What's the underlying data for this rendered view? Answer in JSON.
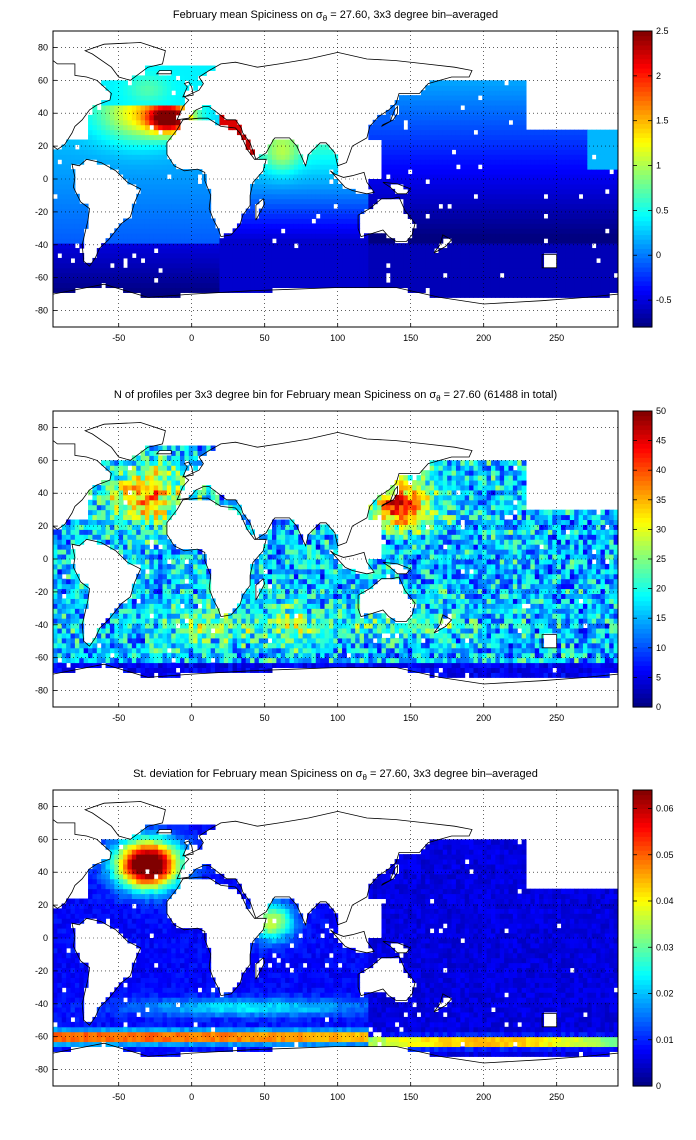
{
  "chart_data": [
    {
      "type": "heatmap",
      "title_prefix": "February mean Spiciness on σ",
      "title_sub": "θ",
      "title_suffix": " = 27.60, 3x3 degree bin–averaged",
      "xlim": [
        -95,
        292
      ],
      "ylim": [
        -90,
        90
      ],
      "xticks": [
        -50,
        0,
        50,
        100,
        150,
        200,
        250
      ],
      "yticks": [
        80,
        60,
        40,
        20,
        0,
        -20,
        -40,
        -60,
        -80
      ],
      "grid": true,
      "colorbar": {
        "min": -0.8,
        "max": 2.5,
        "ticks": [
          2.5,
          2,
          1.5,
          1,
          0.5,
          0,
          -0.5
        ],
        "tick_labels": [
          "2.5",
          "2",
          "1.5",
          "1",
          "0.5",
          "0",
          "-0.5"
        ]
      },
      "colormap": "jet",
      "field": "spiciness"
    },
    {
      "type": "heatmap",
      "title_prefix": "N of profiles per 3x3 degree bin for February mean Spiciness on σ",
      "title_sub": "θ",
      "title_suffix": " = 27.60 (61488 in total)",
      "xlim": [
        -95,
        292
      ],
      "ylim": [
        -90,
        90
      ],
      "xticks": [
        -50,
        0,
        50,
        100,
        150,
        200,
        250
      ],
      "yticks": [
        80,
        60,
        40,
        20,
        0,
        -20,
        -40,
        -60,
        -80
      ],
      "grid": true,
      "colorbar": {
        "min": 0,
        "max": 50,
        "ticks": [
          50,
          45,
          40,
          35,
          30,
          25,
          20,
          15,
          10,
          5,
          0
        ],
        "tick_labels": [
          "50",
          "45",
          "40",
          "35",
          "30",
          "25",
          "20",
          "15",
          "10",
          "5",
          "0"
        ]
      },
      "colormap": "jet",
      "field": "count"
    },
    {
      "type": "heatmap",
      "title_prefix": "St. deviation for February mean Spiciness on σ",
      "title_sub": "θ",
      "title_suffix": " = 27.60, 3x3 degree bin–averaged",
      "xlim": [
        -95,
        292
      ],
      "ylim": [
        -90,
        90
      ],
      "xticks": [
        -50,
        0,
        50,
        100,
        150,
        200,
        250
      ],
      "yticks": [
        80,
        60,
        40,
        20,
        0,
        -20,
        -40,
        -60,
        -80
      ],
      "grid": true,
      "colorbar": {
        "min": 0,
        "max": 0.064,
        "ticks": [
          0.06,
          0.05,
          0.04,
          0.03,
          0.02,
          0.01,
          0
        ],
        "tick_labels": [
          "0.06",
          "0.05",
          "0.04",
          "0.03",
          "0.02",
          "0.01",
          "0"
        ]
      },
      "colormap": "jet",
      "field": "std"
    }
  ]
}
